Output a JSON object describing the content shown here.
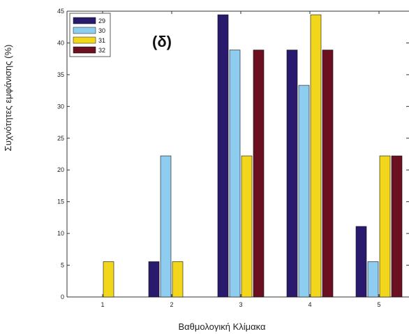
{
  "chart_data": {
    "type": "bar",
    "categories": [
      "1",
      "2",
      "3",
      "4",
      "5"
    ],
    "series": [
      {
        "name": "29",
        "color": "#2a1a6e",
        "values": [
          0,
          5.56,
          44.44,
          38.89,
          11.11
        ]
      },
      {
        "name": "30",
        "color": "#8ecdf0",
        "values": [
          0,
          22.22,
          38.89,
          33.33,
          5.56
        ]
      },
      {
        "name": "31",
        "color": "#f1d61c",
        "values": [
          5.56,
          5.56,
          22.22,
          44.44,
          22.22
        ]
      },
      {
        "name": "32",
        "color": "#6b1020",
        "values": [
          0,
          0,
          38.89,
          38.89,
          22.22
        ]
      }
    ],
    "xlabel": "Βαθμολογική Κλίμακα",
    "ylabel": "Συχνότητες εμφάνισης (%)",
    "ylim": [
      0,
      45
    ],
    "yticks": [
      0,
      5,
      10,
      15,
      20,
      25,
      30,
      35,
      40,
      45
    ],
    "annotation": "(δ)",
    "legend_position": "top-left",
    "grid": false
  }
}
